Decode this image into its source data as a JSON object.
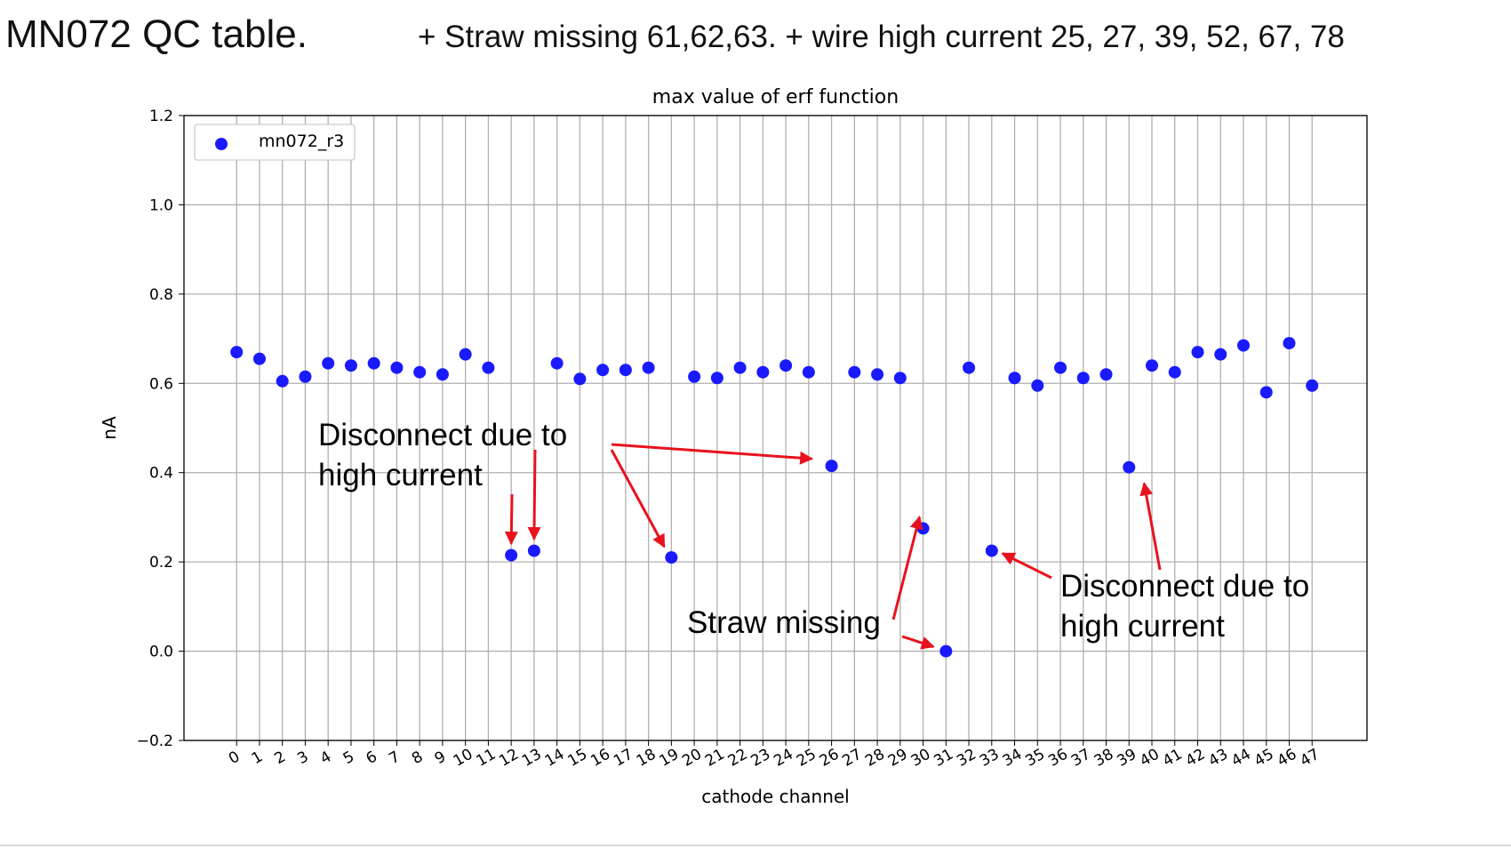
{
  "slide": {
    "title": "MN072 QC table.",
    "subtitle": "+ Straw missing 61,62,63.  + wire high current 25, 27, 39, 52, 67, 78"
  },
  "chart_data": {
    "type": "scatter",
    "title": "max value of erf function",
    "xlabel": "cathode channel",
    "ylabel": "nA",
    "xlim": [
      -2.3,
      49.4
    ],
    "ylim": [
      -0.2,
      1.2
    ],
    "x_ticks": [
      0,
      1,
      2,
      3,
      4,
      5,
      6,
      7,
      8,
      9,
      10,
      11,
      12,
      13,
      14,
      15,
      16,
      17,
      18,
      19,
      20,
      21,
      22,
      23,
      24,
      25,
      26,
      27,
      28,
      29,
      30,
      31,
      32,
      33,
      34,
      35,
      36,
      37,
      38,
      39,
      40,
      41,
      42,
      43,
      44,
      45,
      46,
      47
    ],
    "y_ticks": [
      -0.2,
      0.0,
      0.2,
      0.4,
      0.6,
      0.8,
      1.0,
      1.2
    ],
    "y_tick_labels": [
      "−0.2",
      "0.0",
      "0.2",
      "0.4",
      "0.6",
      "0.8",
      "1.0",
      "1.2"
    ],
    "grid": true,
    "legend_position": "top-left",
    "series": [
      {
        "name": "mn072_r3",
        "color": "#1a1aff",
        "points": [
          [
            0,
            0.67
          ],
          [
            1,
            0.655
          ],
          [
            2,
            0.605
          ],
          [
            3,
            0.615
          ],
          [
            4,
            0.645
          ],
          [
            5,
            0.64
          ],
          [
            6,
            0.645
          ],
          [
            7,
            0.635
          ],
          [
            8,
            0.625
          ],
          [
            9,
            0.62
          ],
          [
            10,
            0.665
          ],
          [
            11,
            0.635
          ],
          [
            12,
            0.215
          ],
          [
            13,
            0.225
          ],
          [
            14,
            0.645
          ],
          [
            15,
            0.61
          ],
          [
            16,
            0.63
          ],
          [
            17,
            0.63
          ],
          [
            18,
            0.635
          ],
          [
            19,
            0.21
          ],
          [
            20,
            0.615
          ],
          [
            21,
            0.612
          ],
          [
            22,
            0.635
          ],
          [
            23,
            0.625
          ],
          [
            24,
            0.64
          ],
          [
            25,
            0.625
          ],
          [
            26,
            0.415
          ],
          [
            27,
            0.625
          ],
          [
            28,
            0.62
          ],
          [
            29,
            0.612
          ],
          [
            30,
            0.275
          ],
          [
            31,
            0.0
          ],
          [
            32,
            0.635
          ],
          [
            33,
            0.225
          ],
          [
            34,
            0.612
          ],
          [
            35,
            0.595
          ],
          [
            36,
            0.635
          ],
          [
            37,
            0.612
          ],
          [
            38,
            0.62
          ],
          [
            39,
            0.412
          ],
          [
            40,
            0.64
          ],
          [
            41,
            0.625
          ],
          [
            42,
            0.67
          ],
          [
            43,
            0.665
          ],
          [
            44,
            0.685
          ],
          [
            45,
            0.58
          ],
          [
            46,
            0.69
          ],
          [
            47,
            0.595
          ]
        ]
      }
    ],
    "annotations": [
      {
        "text_lines": [
          "Disconnect due to",
          "high current"
        ],
        "targets": [
          12,
          13,
          19,
          26
        ]
      },
      {
        "text_lines": [
          "Straw missing"
        ],
        "targets": [
          30,
          31
        ]
      },
      {
        "text_lines": [
          "Disconnect due to",
          "high current"
        ],
        "targets": [
          33,
          39
        ]
      }
    ],
    "annotation_color": "#e8121e"
  }
}
